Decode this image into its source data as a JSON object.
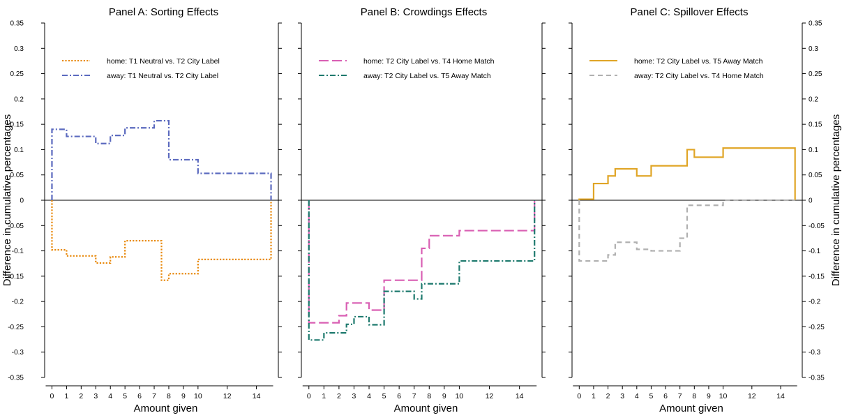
{
  "ylabel": "Difference in cumulative percentages",
  "y_ticks": [
    0.35,
    0.3,
    0.25,
    0.2,
    0.15,
    0.1,
    0.05,
    0,
    -0.05,
    -0.1,
    -0.15,
    -0.2,
    -0.25,
    -0.3,
    -0.35
  ],
  "y_tick_labels": [
    "0.35",
    "0.3",
    "0.25",
    "0.2",
    "0.15",
    "0.1",
    "0.05",
    "0",
    "-0.05",
    "-0.1",
    "-0.15",
    "-0.2",
    "-0.25",
    "-0.3",
    "-0.35"
  ],
  "x_ticks": [
    0,
    1,
    2,
    3,
    4,
    5,
    6,
    7,
    8,
    9,
    10,
    12,
    14
  ],
  "x_tick_labels": [
    "0",
    "1",
    "2",
    "3",
    "4",
    "5",
    "6",
    "7",
    "8",
    "9",
    "10",
    "12",
    "14"
  ],
  "xlabel": "Amount given",
  "chart_data": [
    {
      "type": "line",
      "title": "Panel A: Sorting Effects",
      "xlabel": "Amount given",
      "ylabel": "Difference in cumulative percentages",
      "xlim": [
        -0.5,
        15.5
      ],
      "ylim": [
        -0.35,
        0.35
      ],
      "legend_position": "top-left",
      "series": [
        {
          "name": "home: T1 Neutral vs. T2 City Label",
          "color": "#E8890C",
          "dash": "dotted",
          "step": true,
          "x": [
            0,
            1,
            3,
            4,
            4.5,
            5,
            7.5,
            8,
            10,
            15
          ],
          "y": [
            -0.098,
            -0.11,
            -0.124,
            -0.112,
            -0.112,
            -0.08,
            -0.158,
            -0.145,
            -0.117,
            0
          ]
        },
        {
          "name": "away: T1 Neutral vs. T2 City Label",
          "color": "#5B6ABF",
          "dash": "dashdot",
          "step": true,
          "x": [
            0,
            1,
            3,
            4,
            5,
            7,
            7.5,
            8,
            10,
            15
          ],
          "y": [
            0.14,
            0.126,
            0.112,
            0.128,
            0.143,
            0.157,
            0.157,
            0.08,
            0.053,
            0
          ]
        }
      ]
    },
    {
      "type": "line",
      "title": "Panel B: Crowdings Effects",
      "xlabel": "Amount given",
      "ylabel": "",
      "xlim": [
        -0.5,
        15.5
      ],
      "ylim": [
        -0.35,
        0.35
      ],
      "legend_position": "top-left",
      "series": [
        {
          "name": "home: T2 City Label vs. T4 Home Match",
          "color": "#D95FB3",
          "dash": "longdash",
          "step": true,
          "x": [
            0,
            2,
            2.5,
            3,
            4,
            5,
            7.5,
            8,
            10,
            15
          ],
          "y": [
            -0.242,
            -0.228,
            -0.203,
            -0.203,
            -0.217,
            -0.158,
            -0.095,
            -0.07,
            -0.06,
            0
          ]
        },
        {
          "name": "away: T2 City Label vs. T5 Away Match",
          "color": "#1E7A6E",
          "dash": "dashdot",
          "step": true,
          "x": [
            0,
            1,
            2.5,
            3,
            4,
            5,
            7,
            7.5,
            10,
            15
          ],
          "y": [
            -0.276,
            -0.262,
            -0.245,
            -0.23,
            -0.246,
            -0.18,
            -0.195,
            -0.165,
            -0.12,
            0
          ]
        }
      ]
    },
    {
      "type": "line",
      "title": "Panel C: Spillover Effects",
      "xlabel": "Amount given",
      "ylabel": "Difference in cumulative percentages",
      "xlim": [
        -0.5,
        15.5
      ],
      "ylim": [
        -0.35,
        0.35
      ],
      "legend_position": "top-left",
      "series": [
        {
          "name": "home: T2 City Label vs. T5 Away Match",
          "color": "#E0A526",
          "dash": "solid",
          "step": true,
          "x": [
            0,
            1,
            2,
            2.5,
            4,
            5,
            7.5,
            8,
            10,
            15
          ],
          "y": [
            0.002,
            0.033,
            0.048,
            0.062,
            0.048,
            0.068,
            0.1,
            0.085,
            0.103,
            0
          ]
        },
        {
          "name": "away: T2 City Label vs. T4 Home Match",
          "color": "#B0B0B0",
          "dash": "dashed",
          "step": true,
          "x": [
            0,
            2,
            2.5,
            4,
            5,
            7,
            7.5,
            10,
            15
          ],
          "y": [
            -0.12,
            -0.108,
            -0.083,
            -0.097,
            -0.1,
            -0.075,
            -0.01,
            0,
            0
          ]
        }
      ]
    }
  ]
}
